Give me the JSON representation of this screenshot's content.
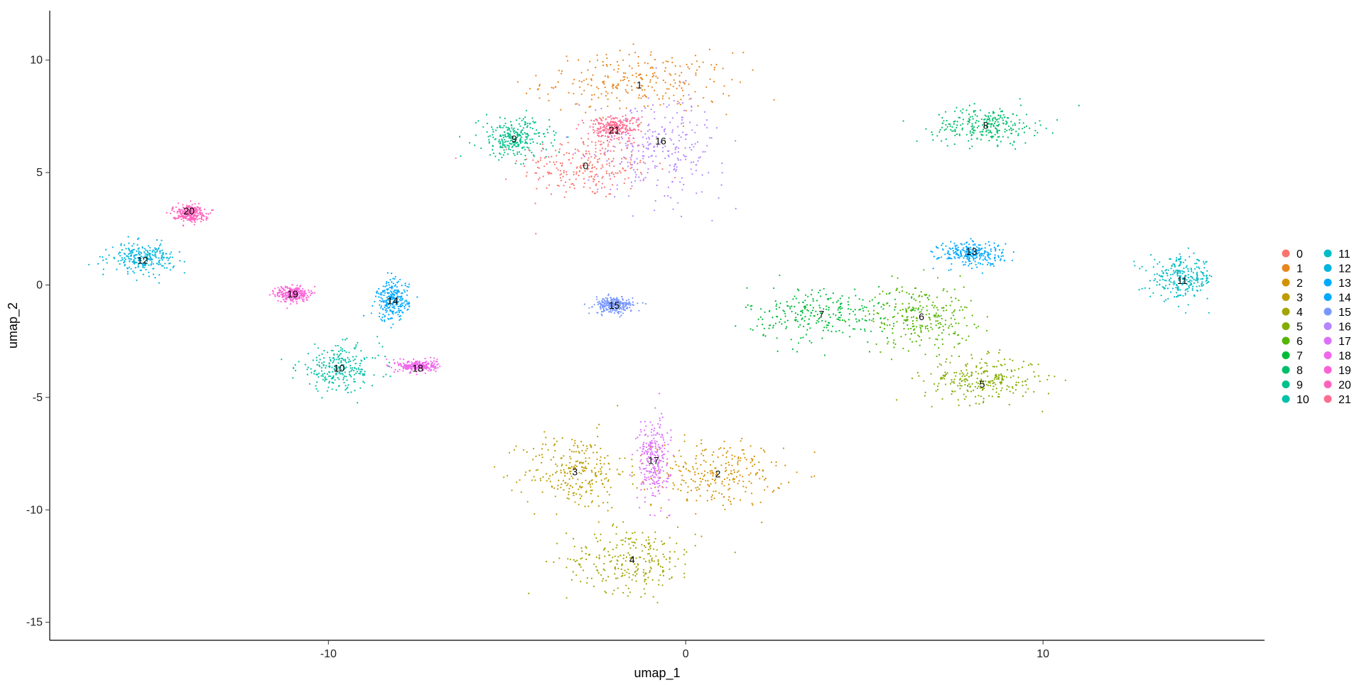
{
  "chart_data": {
    "type": "scatter",
    "xlabel": "umap_1",
    "ylabel": "umap_2",
    "xlim": [
      -17.8,
      16.2
    ],
    "ylim": [
      -15.8,
      12.2
    ],
    "x_ticks": [
      -10,
      0,
      10
    ],
    "y_ticks": [
      -15,
      -10,
      -5,
      0,
      5,
      10
    ],
    "x_tick_labels": [
      "-10",
      "0",
      "10"
    ],
    "y_tick_labels": [
      "-15",
      "-10",
      "-5",
      "0",
      "5",
      "10"
    ],
    "grid": false,
    "legend_placement": "right",
    "legend_columns": 2,
    "series": [
      {
        "name": "0",
        "color": "#F8766D",
        "centroid": [
          -2.8,
          5.3
        ],
        "spread": [
          2.0,
          1.6
        ]
      },
      {
        "name": "1",
        "color": "#E7851E",
        "centroid": [
          -1.3,
          9.0
        ],
        "spread": [
          3.0,
          1.5
        ]
      },
      {
        "name": "2",
        "color": "#D39200",
        "centroid": [
          0.9,
          -8.4
        ],
        "spread": [
          2.0,
          1.6
        ]
      },
      {
        "name": "3",
        "color": "#BB9D00",
        "centroid": [
          -3.1,
          -8.3
        ],
        "spread": [
          1.6,
          1.9
        ]
      },
      {
        "name": "4",
        "color": "#A3A500",
        "centroid": [
          -1.5,
          -12.2
        ],
        "spread": [
          2.0,
          1.6
        ]
      },
      {
        "name": "5",
        "color": "#83AD00",
        "centroid": [
          8.3,
          -4.2
        ],
        "spread": [
          1.8,
          1.1
        ]
      },
      {
        "name": "6",
        "color": "#55B500",
        "centroid": [
          6.6,
          -1.4
        ],
        "spread": [
          1.6,
          1.6
        ]
      },
      {
        "name": "7",
        "color": "#00BA38",
        "centroid": [
          3.8,
          -1.3
        ],
        "spread": [
          2.3,
          1.4
        ]
      },
      {
        "name": "8",
        "color": "#00BE6C",
        "centroid": [
          8.4,
          7.1
        ],
        "spread": [
          1.6,
          0.9
        ]
      },
      {
        "name": "9",
        "color": "#00C08B",
        "centroid": [
          -4.8,
          6.5
        ],
        "spread": [
          1.1,
          1.0
        ]
      },
      {
        "name": "10",
        "color": "#00C0A7",
        "centroid": [
          -9.7,
          -3.7
        ],
        "spread": [
          1.3,
          1.1
        ]
      },
      {
        "name": "11",
        "color": "#00BCC4",
        "centroid": [
          13.9,
          0.3
        ],
        "spread": [
          1.0,
          1.0
        ]
      },
      {
        "name": "12",
        "color": "#00B5DE",
        "centroid": [
          -15.2,
          1.2
        ],
        "spread": [
          1.0,
          0.7
        ]
      },
      {
        "name": "13",
        "color": "#00A9FF",
        "centroid": [
          8.0,
          1.4
        ],
        "spread": [
          1.0,
          0.6
        ]
      },
      {
        "name": "14",
        "color": "#00A9FF",
        "centroid": [
          -8.2,
          -0.7
        ],
        "spread": [
          0.5,
          1.0
        ]
      },
      {
        "name": "15",
        "color": "#7997FF",
        "centroid": [
          -2.0,
          -0.9
        ],
        "spread": [
          0.6,
          0.4
        ]
      },
      {
        "name": "16",
        "color": "#B385FF",
        "centroid": [
          -0.7,
          6.2
        ],
        "spread": [
          2.0,
          2.5
        ]
      },
      {
        "name": "17",
        "color": "#DC71FA",
        "centroid": [
          -0.9,
          -7.8
        ],
        "spread": [
          0.5,
          2.0
        ]
      },
      {
        "name": "18",
        "color": "#EF67EB",
        "centroid": [
          -7.5,
          -3.6
        ],
        "spread": [
          0.6,
          0.3
        ]
      },
      {
        "name": "19",
        "color": "#FB61D7",
        "centroid": [
          -11.0,
          -0.4
        ],
        "spread": [
          0.5,
          0.4
        ]
      },
      {
        "name": "20",
        "color": "#FF62BC",
        "centroid": [
          -13.9,
          3.2
        ],
        "spread": [
          0.5,
          0.4
        ]
      },
      {
        "name": "21",
        "color": "#FF6C91",
        "centroid": [
          -2.0,
          7.0
        ],
        "spread": [
          0.8,
          0.6
        ]
      }
    ],
    "labels": [
      {
        "text": "0",
        "x": -2.8,
        "y": 5.3
      },
      {
        "text": "1",
        "x": -1.3,
        "y": 8.9
      },
      {
        "text": "2",
        "x": 0.9,
        "y": -8.4
      },
      {
        "text": "3",
        "x": -3.1,
        "y": -8.3
      },
      {
        "text": "4",
        "x": -1.5,
        "y": -12.2
      },
      {
        "text": "5",
        "x": 8.3,
        "y": -4.4
      },
      {
        "text": "6",
        "x": 6.6,
        "y": -1.4
      },
      {
        "text": "7",
        "x": 3.8,
        "y": -1.3
      },
      {
        "text": "8",
        "x": 8.4,
        "y": 7.1
      },
      {
        "text": "9",
        "x": -4.8,
        "y": 6.5
      },
      {
        "text": "10",
        "x": -9.7,
        "y": -3.7
      },
      {
        "text": "11",
        "x": 13.9,
        "y": 0.2
      },
      {
        "text": "12",
        "x": -15.2,
        "y": 1.1
      },
      {
        "text": "13",
        "x": 8.0,
        "y": 1.5
      },
      {
        "text": "14",
        "x": -8.2,
        "y": -0.7
      },
      {
        "text": "15",
        "x": -2.0,
        "y": -0.9
      },
      {
        "text": "16",
        "x": -0.7,
        "y": 6.4
      },
      {
        "text": "17",
        "x": -0.9,
        "y": -7.8
      },
      {
        "text": "18",
        "x": -7.5,
        "y": -3.7
      },
      {
        "text": "19",
        "x": -11.0,
        "y": -0.4
      },
      {
        "text": "20",
        "x": -13.9,
        "y": 3.3
      },
      {
        "text": "21",
        "x": -2.0,
        "y": 6.9
      }
    ]
  }
}
